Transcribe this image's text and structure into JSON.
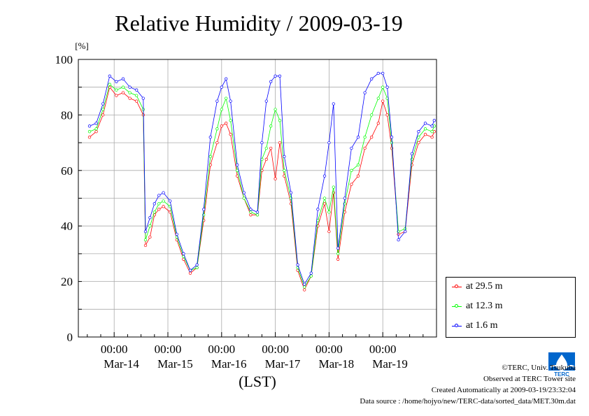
{
  "chart_data": {
    "type": "line",
    "title": "Relative Humidity / 2009-03-19",
    "yunit": "[%]",
    "xlabel": "(LST)",
    "ylim": [
      0,
      100
    ],
    "yticks": [
      0,
      20,
      40,
      60,
      80,
      100
    ],
    "x_tick_time_label": "00:00",
    "x_tick_dates": [
      "Mar-14",
      "Mar-15",
      "Mar-16",
      "Mar-17",
      "Mar-18",
      "Mar-19"
    ],
    "grid": true,
    "legend_position": "bottom-right, outside plot",
    "x": [
      "03-13 13:00",
      "03-13 16:00",
      "03-13 19:00",
      "03-13 22:00",
      "03-14 01:00",
      "03-14 04:00",
      "03-14 07:00",
      "03-14 10:00",
      "03-14 13:00",
      "03-14 14:00",
      "03-14 16:00",
      "03-14 18:00",
      "03-14 20:00",
      "03-14 22:00",
      "03-15 01:00",
      "03-15 04:00",
      "03-15 07:00",
      "03-15 10:00",
      "03-15 13:00",
      "03-15 16:00",
      "03-15 19:00",
      "03-15 22:00",
      "03-16 00:00",
      "03-16 02:00",
      "03-16 04:00",
      "03-16 07:00",
      "03-16 10:00",
      "03-16 13:00",
      "03-16 16:00",
      "03-16 18:00",
      "03-16 20:00",
      "03-16 22:00",
      "03-17 00:00",
      "03-17 02:00",
      "03-17 04:00",
      "03-17 07:00",
      "03-17 10:00",
      "03-17 13:00",
      "03-17 16:00",
      "03-17 19:00",
      "03-17 22:00",
      "03-18 00:00",
      "03-18 02:00",
      "03-18 04:00",
      "03-18 07:00",
      "03-18 10:00",
      "03-18 13:00",
      "03-18 16:00",
      "03-18 19:00",
      "03-18 22:00",
      "03-19 00:00",
      "03-19 02:00",
      "03-19 04:00",
      "03-19 07:00",
      "03-19 10:00",
      "03-19 13:00",
      "03-19 16:00",
      "03-19 19:00",
      "03-19 22:00",
      "03-19 23:00"
    ],
    "series": [
      {
        "name": "at 29.5 m",
        "color": "#ff0000",
        "values": [
          72,
          74,
          80,
          90,
          87,
          88,
          86,
          85,
          80,
          33,
          36,
          44,
          46,
          47,
          45,
          35,
          28,
          23,
          25,
          42,
          62,
          70,
          76,
          77,
          73,
          58,
          50,
          44,
          44,
          60,
          64,
          68,
          57,
          70,
          58,
          48,
          24,
          17,
          22,
          40,
          48,
          38,
          52,
          28,
          45,
          55,
          58,
          68,
          72,
          77,
          85,
          80,
          68,
          37,
          38,
          62,
          70,
          73,
          72,
          74
        ]
      },
      {
        "name": "at 12.3 m",
        "color": "#00ff00",
        "values": [
          74,
          75,
          82,
          91,
          89,
          90,
          88,
          87,
          82,
          35,
          40,
          45,
          48,
          49,
          47,
          36,
          29,
          24,
          25,
          44,
          65,
          75,
          82,
          86,
          78,
          60,
          50,
          45,
          44,
          64,
          68,
          76,
          82,
          78,
          60,
          50,
          25,
          18,
          22,
          42,
          50,
          45,
          54,
          30,
          48,
          60,
          62,
          72,
          80,
          86,
          90,
          86,
          70,
          38,
          39,
          64,
          72,
          75,
          74,
          76
        ]
      },
      {
        "name": "at 1.6 m",
        "color": "#0000ff",
        "values": [
          76,
          77,
          84,
          94,
          92,
          93,
          90,
          89,
          86,
          38,
          43,
          48,
          51,
          52,
          49,
          37,
          30,
          24,
          26,
          46,
          72,
          85,
          90,
          93,
          85,
          62,
          52,
          46,
          45,
          70,
          85,
          92,
          94,
          94,
          65,
          52,
          26,
          19,
          23,
          46,
          58,
          70,
          84,
          32,
          50,
          68,
          72,
          88,
          93,
          95,
          95,
          90,
          72,
          35,
          38,
          66,
          74,
          77,
          76,
          78
        ]
      }
    ]
  },
  "credits": {
    "line1": "©TERC, Univ. Tsukuba",
    "line2": "Observed at TERC Tower site",
    "line3": "Created Automatically at 2009-03-19/23:32:04",
    "line4": "Data source : /home/hojyo/new/TERC-data/sorted_data/MET.30m.dat"
  },
  "logo": {
    "name": "terc-logo",
    "text": "TERC",
    "color": "#0066cc"
  }
}
